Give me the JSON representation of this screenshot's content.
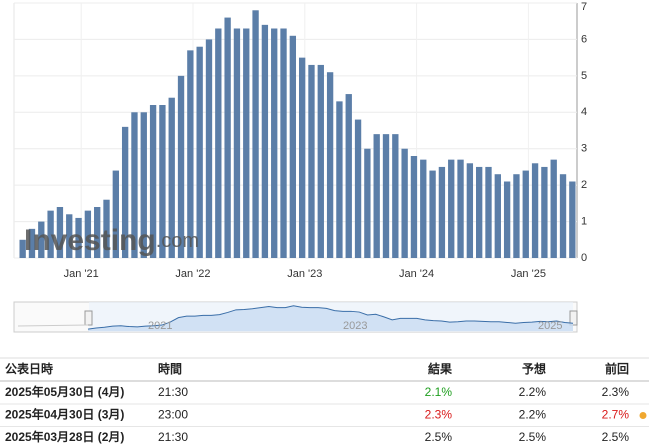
{
  "chart_data": {
    "type": "bar",
    "categories": [
      null,
      null,
      null,
      null,
      null,
      null,
      null,
      null,
      "Jan '21",
      null,
      null,
      null,
      null,
      null,
      null,
      null,
      null,
      null,
      null,
      null,
      "Jan '22",
      null,
      null,
      null,
      null,
      null,
      null,
      null,
      null,
      null,
      null,
      null,
      "Jan '23",
      null,
      null,
      null,
      null,
      null,
      null,
      null,
      null,
      null,
      null,
      null,
      "Jan '24",
      null,
      null,
      null,
      null,
      null,
      null,
      null,
      null,
      null,
      null,
      null,
      "Jan '25",
      null,
      null,
      null
    ],
    "values": [
      0.5,
      0.8,
      1.0,
      1.3,
      1.4,
      1.2,
      1.1,
      1.3,
      1.4,
      1.6,
      2.4,
      3.6,
      4.0,
      4.0,
      4.2,
      4.2,
      4.4,
      5.0,
      5.7,
      5.8,
      6.0,
      6.3,
      6.6,
      6.3,
      6.3,
      6.8,
      6.4,
      6.3,
      6.3,
      6.1,
      5.5,
      5.3,
      5.3,
      5.1,
      4.3,
      4.5,
      3.8,
      3.0,
      3.4,
      3.4,
      3.4,
      3.0,
      2.8,
      2.7,
      2.4,
      2.5,
      2.7,
      2.7,
      2.6,
      2.5,
      2.5,
      2.3,
      2.1,
      2.3,
      2.4,
      2.6,
      2.5,
      2.7,
      2.3,
      2.1
    ],
    "color": "#5b7ea8",
    "ylim": [
      0,
      7
    ],
    "yticks": [
      0,
      1,
      2,
      3,
      4,
      5,
      6,
      7
    ],
    "grid": true,
    "watermark": [
      "Investing",
      ".com"
    ],
    "navigator_labels": [
      "2021",
      "2023",
      "2025"
    ]
  },
  "table": {
    "header": [
      "公表日時",
      "時間",
      "結果",
      "予想",
      "前回"
    ],
    "rows": [
      [
        "2025年05月30日 (4月)",
        "21:30",
        "2.1%",
        "2.2%",
        "2.3%"
      ],
      [
        "2025年04月30日 (3月)",
        "23:00",
        "2.3%",
        "2.2%",
        "2.7%"
      ],
      [
        "2025年03月28日 (2月)",
        "21:30",
        "2.5%",
        "2.5%",
        "2.5%"
      ]
    ],
    "result_colors": [
      "#1e9e1e",
      "#d91a1a",
      null
    ],
    "previous_colors": [
      null,
      "#d91a1a",
      null
    ]
  }
}
